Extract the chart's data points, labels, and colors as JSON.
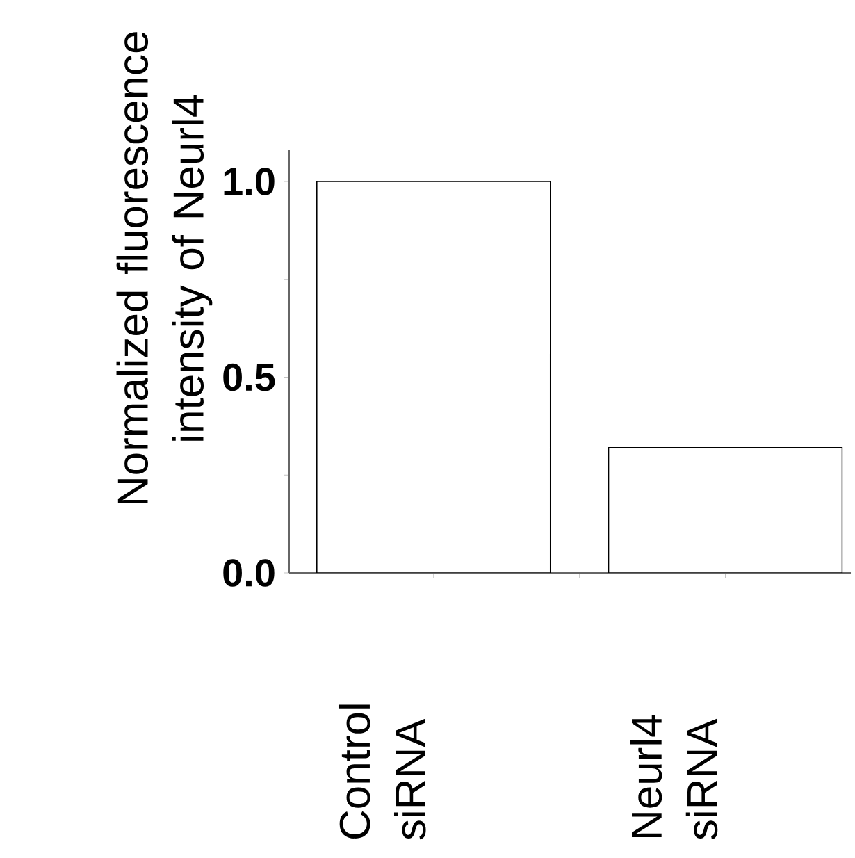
{
  "chart_data": {
    "type": "bar",
    "ylabel": "Normalized fluorescence intensity of Neurl4",
    "categories": [
      "Control siRNA",
      "Neurl4 siRNA"
    ],
    "values": [
      1.0,
      0.32
    ],
    "color": "#ffffff",
    "ylim": [
      0,
      1.08
    ],
    "yticks": [
      {
        "value": 0,
        "label": "0.0"
      },
      {
        "value": 0.5,
        "label": "0.5"
      },
      {
        "value": 1.0,
        "label": "1.0"
      }
    ],
    "grid": false
  }
}
